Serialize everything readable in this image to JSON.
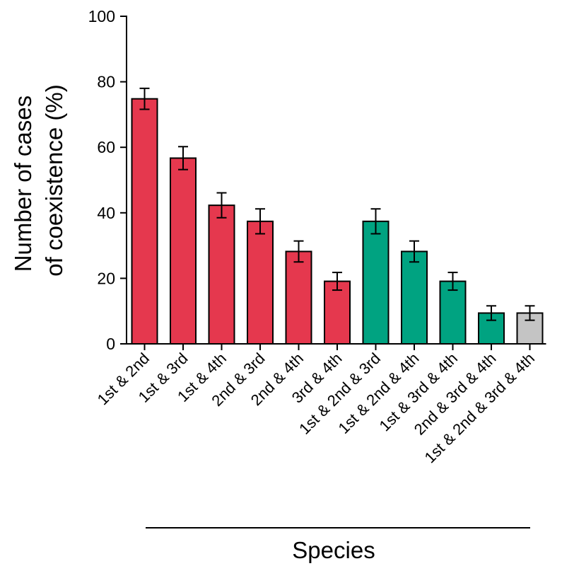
{
  "chart_data": {
    "type": "bar",
    "categories": [
      "1st & 2nd",
      "1st & 3rd",
      "1st & 4th",
      "2nd & 3rd",
      "2nd & 4th",
      "3rd & 4th",
      "1st & 2nd & 3rd",
      "1st & 2nd & 4th",
      "1st & 3rd & 4th",
      "2nd & 3rd & 4th",
      "1st & 2nd & 3rd & 4th"
    ],
    "values": [
      74.8,
      56.7,
      42.3,
      37.4,
      28.2,
      19.1,
      37.4,
      28.2,
      19.1,
      9.4,
      9.4
    ],
    "errors": [
      3.2,
      3.5,
      3.8,
      3.8,
      3.2,
      2.7,
      3.8,
      3.2,
      2.7,
      2.2,
      2.2
    ],
    "colors": [
      "#e5384e",
      "#e5384e",
      "#e5384e",
      "#e5384e",
      "#e5384e",
      "#e5384e",
      "#00a381",
      "#00a381",
      "#00a381",
      "#00a381",
      "#c4c4c4"
    ],
    "title": "",
    "xlabel": "Species",
    "ylabel_lines": [
      "Number of cases",
      "of coexistence (%)"
    ],
    "ylim": [
      0,
      100
    ],
    "yticks": [
      0,
      20,
      40,
      60,
      80,
      100
    ],
    "grid": false,
    "legend": "none"
  }
}
